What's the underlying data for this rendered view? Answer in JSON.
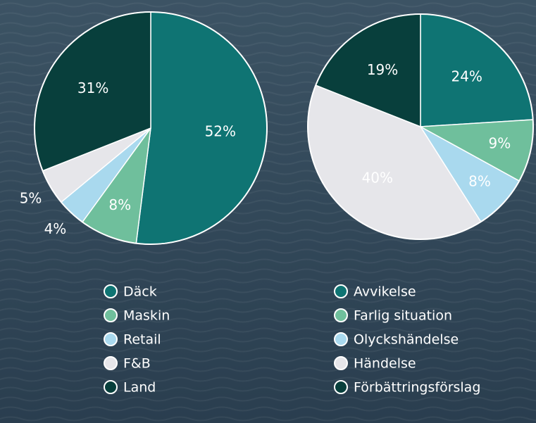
{
  "chart_data": [
    {
      "type": "pie",
      "categories": [
        "Däck",
        "Maskin",
        "Retail",
        "F&B",
        "Land"
      ],
      "values": [
        52,
        8,
        4,
        5,
        31
      ],
      "value_labels": [
        "52%",
        "8%",
        "4%",
        "5%",
        "31%"
      ],
      "colors": [
        "#0f7473",
        "#6fbf9c",
        "#a9d9ee",
        "#e6e6ea",
        "#083f3c"
      ]
    },
    {
      "type": "pie",
      "categories": [
        "Avvikelse",
        "Farlig situation",
        "Olyckshändelse",
        "Händelse",
        "Förbättringsförslag"
      ],
      "values": [
        24,
        9,
        8,
        40,
        19
      ],
      "value_labels": [
        "24%",
        "9%",
        "8%",
        "40%",
        "19%"
      ],
      "colors": [
        "#0f7473",
        "#6fbf9c",
        "#a9d9ee",
        "#e6e6ea",
        "#083f3c"
      ]
    }
  ]
}
